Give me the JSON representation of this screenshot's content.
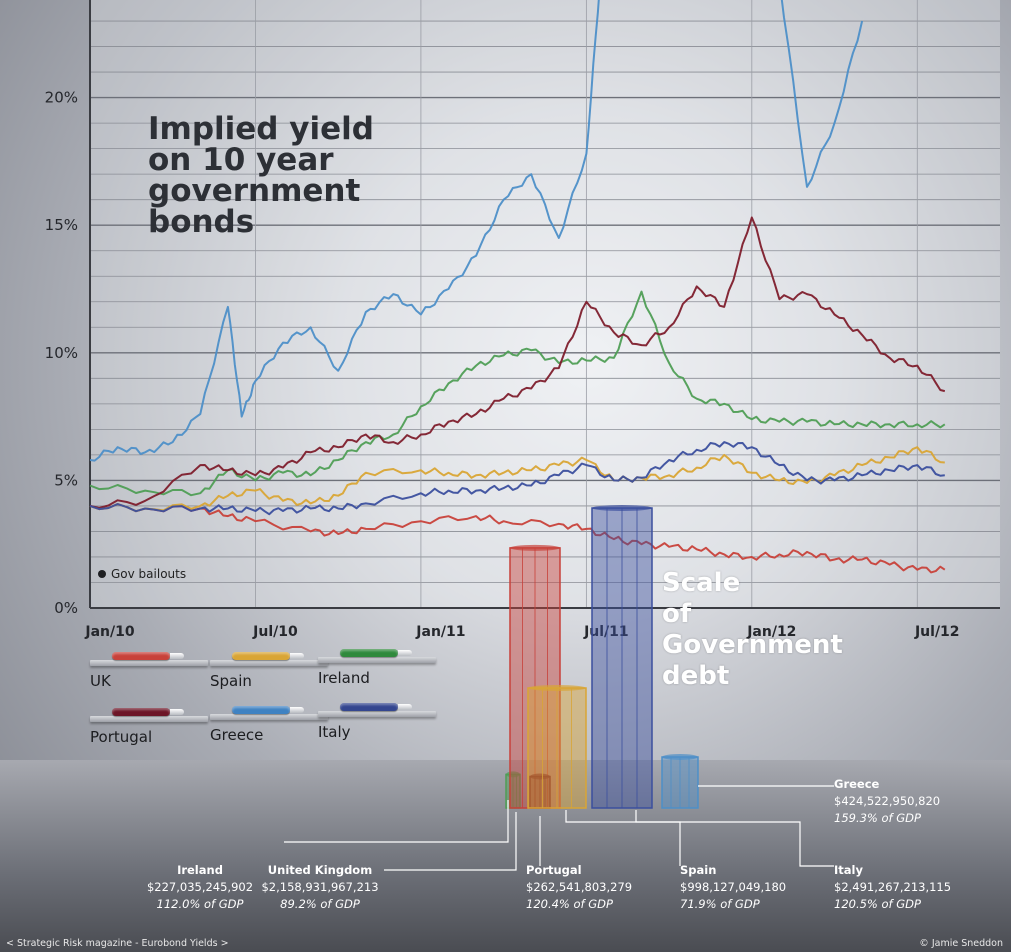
{
  "chart_title": "Implied yield\non 10 year\ngovernment\nbonds",
  "debt_title": "Scale\nof\nGovernment\ndebt",
  "bailout_label": "Gov bailouts",
  "footer": {
    "left": "< Strategic Risk magazine - Eurobond Yields >",
    "right": "© Jamie Sneddon"
  },
  "colors": {
    "UK": "#c8413a",
    "Spain": "#d9a535",
    "Ireland": "#4f9e55",
    "Portugal": "#7e1e2c",
    "Greece": "#4d8fc8",
    "Italy": "#3b4f9e"
  },
  "legend": [
    {
      "label": "UK",
      "color": "#c8413a"
    },
    {
      "label": "Spain",
      "color": "#d9a535"
    },
    {
      "label": "Ireland",
      "color": "#2f8a3c"
    },
    {
      "label": "Portugal",
      "color": "#6d1527"
    },
    {
      "label": "Greece",
      "color": "#3f82c2"
    },
    {
      "label": "Italy",
      "color": "#34468f"
    }
  ],
  "chart_data": {
    "type": "line",
    "title": "Implied yield on 10 year government bonds",
    "ylim": [
      0,
      25
    ],
    "y_ticks": [
      "0%",
      "5%",
      "10%",
      "15%",
      "20%"
    ],
    "y_tick_values": [
      0,
      5,
      10,
      15,
      20
    ],
    "x_ticks": [
      "Jan/10",
      "Jul/10",
      "Jan/11",
      "Jul/11",
      "Jan/12",
      "Jul/12"
    ],
    "x_tick_values": [
      0,
      6,
      12,
      18,
      24,
      30
    ],
    "x_unit": "months since Jan/10",
    "grid": true,
    "series": [
      {
        "name": "UK",
        "x": [
          0,
          2,
          4,
          5,
          6,
          8,
          9,
          10,
          12,
          14,
          15,
          17,
          18,
          19,
          20,
          21,
          22,
          23,
          24,
          25,
          26,
          27,
          28,
          29,
          30,
          31
        ],
        "values": [
          4.0,
          3.9,
          3.9,
          3.6,
          3.4,
          3.0,
          2.9,
          3.1,
          3.4,
          3.6,
          3.4,
          3.3,
          3.1,
          2.7,
          2.5,
          2.4,
          2.3,
          2.1,
          2.0,
          2.1,
          2.2,
          1.9,
          1.9,
          1.7,
          1.5,
          1.5
        ]
      },
      {
        "name": "Spain",
        "x": [
          0,
          2,
          4,
          5,
          6,
          7,
          8,
          9,
          10,
          12,
          13,
          14,
          15,
          16,
          17,
          18,
          19,
          20,
          21,
          22,
          23,
          24,
          25,
          26,
          27,
          28,
          29,
          30,
          31
        ],
        "values": [
          4.0,
          3.9,
          4.0,
          4.4,
          4.6,
          4.2,
          4.1,
          4.4,
          5.3,
          5.4,
          5.3,
          5.2,
          5.3,
          5.4,
          5.6,
          5.8,
          5.0,
          5.1,
          5.2,
          5.5,
          6.0,
          5.3,
          5.0,
          4.9,
          5.2,
          5.6,
          5.9,
          6.3,
          5.7
        ]
      },
      {
        "name": "Ireland",
        "x": [
          0,
          2,
          4,
          5,
          6,
          7,
          8,
          9,
          10,
          11,
          12,
          13,
          14,
          15,
          16,
          17,
          18,
          19,
          20,
          21,
          22,
          23,
          24,
          25,
          26,
          27,
          28,
          29,
          30,
          31
        ],
        "values": [
          4.8,
          4.6,
          4.5,
          5.4,
          5.0,
          5.3,
          5.2,
          5.8,
          6.5,
          6.8,
          7.9,
          8.8,
          9.5,
          9.9,
          10.1,
          9.6,
          9.7,
          9.8,
          12.4,
          9.6,
          8.2,
          8.0,
          7.4,
          7.3,
          7.3,
          7.2,
          7.2,
          7.2,
          7.2,
          7.2
        ]
      },
      {
        "name": "Portugal",
        "x": [
          0,
          2,
          4,
          5,
          6,
          7,
          8,
          9,
          10,
          11,
          12,
          13,
          14,
          15,
          16,
          17,
          18,
          19,
          20,
          21,
          22,
          23,
          24,
          25,
          26,
          27,
          28,
          29,
          30,
          31
        ],
        "values": [
          4.0,
          4.2,
          5.6,
          5.4,
          5.2,
          5.5,
          6.1,
          6.3,
          6.8,
          6.5,
          6.8,
          7.3,
          7.6,
          8.2,
          8.6,
          9.4,
          12.0,
          10.8,
          10.3,
          11.0,
          12.6,
          11.8,
          15.3,
          12.1,
          12.3,
          11.5,
          10.7,
          9.8,
          9.5,
          8.5
        ]
      },
      {
        "name": "Greece",
        "x": [
          0,
          1,
          2,
          3,
          4,
          5,
          5.5,
          6,
          7,
          8,
          9,
          10,
          11,
          12,
          13,
          14,
          15,
          16,
          17,
          18,
          18.5,
          19,
          20,
          21,
          22,
          23,
          24,
          25,
          26,
          27,
          28
        ],
        "values": [
          5.8,
          6.3,
          6.1,
          6.5,
          7.6,
          11.8,
          7.5,
          8.9,
          10.4,
          11.0,
          9.3,
          11.6,
          12.3,
          11.5,
          12.5,
          13.8,
          16.0,
          17.0,
          14.5,
          17.8,
          25.5,
          24.0,
          24.2,
          24.5,
          26.0,
          30.0,
          29.0,
          27.0,
          16.5,
          19.0,
          23.0
        ]
      },
      {
        "name": "Italy",
        "x": [
          0,
          2,
          4,
          5,
          6,
          7,
          8,
          9,
          10,
          12,
          13,
          14,
          15,
          16,
          17,
          18,
          19,
          20,
          21,
          22,
          23,
          24,
          25,
          26,
          27,
          28,
          29,
          30,
          31
        ],
        "values": [
          4.0,
          3.9,
          3.9,
          3.9,
          3.8,
          3.8,
          3.9,
          3.9,
          4.1,
          4.5,
          4.6,
          4.6,
          4.7,
          4.8,
          5.2,
          5.6,
          5.0,
          5.1,
          5.8,
          6.2,
          6.5,
          6.3,
          5.6,
          5.0,
          5.0,
          5.2,
          5.4,
          5.6,
          5.2
        ]
      }
    ]
  },
  "debt": [
    {
      "name": "Ireland",
      "amount": "$227,035,245,902",
      "gdp": "112.0% of GDP",
      "color": "#4f9e55",
      "share": 0.112
    },
    {
      "name": "United Kingdom",
      "amount": "$2,158,931,967,213",
      "gdp": "89.2% of GDP",
      "color": "#c8413a",
      "share": 0.867
    },
    {
      "name": "Portugal",
      "amount": "$262,541,803,279",
      "gdp": "120.4% of GDP",
      "color": "#7e1e2c",
      "share": 0.105
    },
    {
      "name": "Spain",
      "amount": "$998,127,049,180",
      "gdp": "71.9% of GDP",
      "color": "#d9a535",
      "share": 0.4
    },
    {
      "name": "Italy",
      "amount": "$2,491,267,213,115",
      "gdp": "120.5% of GDP",
      "color": "#3b4f9e",
      "share": 1.0
    },
    {
      "name": "Greece",
      "amount": "$424,522,950,820",
      "gdp": "159.3% of GDP",
      "color": "#4d8fc8",
      "share": 0.17
    }
  ]
}
